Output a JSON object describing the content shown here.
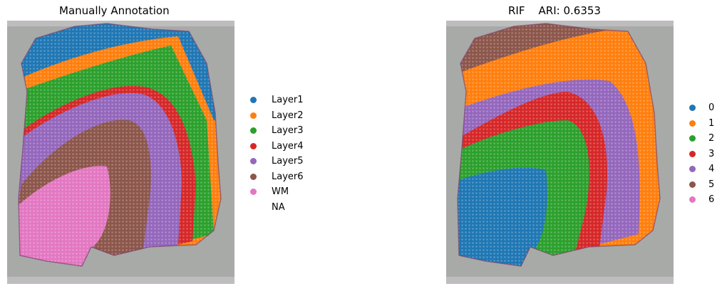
{
  "panels": [
    {
      "title": "Manually Annotation",
      "legend": [
        {
          "label": "Layer1",
          "color": "#1f77b4"
        },
        {
          "label": "Layer2",
          "color": "#ff7f0e"
        },
        {
          "label": "Layer3",
          "color": "#2ca02c"
        },
        {
          "label": "Layer4",
          "color": "#d62728"
        },
        {
          "label": "Layer5",
          "color": "#9467bd"
        },
        {
          "label": "Layer6",
          "color": "#8c564b"
        },
        {
          "label": "WM",
          "color": "#e377c2"
        },
        {
          "label": "NA",
          "color": ""
        }
      ]
    },
    {
      "title": "RIF    ARI: 0.6353",
      "legend": [
        {
          "label": "0",
          "color": "#1f77b4"
        },
        {
          "label": "1",
          "color": "#ff7f0e"
        },
        {
          "label": "2",
          "color": "#2ca02c"
        },
        {
          "label": "3",
          "color": "#d62728"
        },
        {
          "label": "4",
          "color": "#9467bd"
        },
        {
          "label": "5",
          "color": "#8c564b"
        },
        {
          "label": "6",
          "color": "#e377c2"
        }
      ]
    }
  ]
}
